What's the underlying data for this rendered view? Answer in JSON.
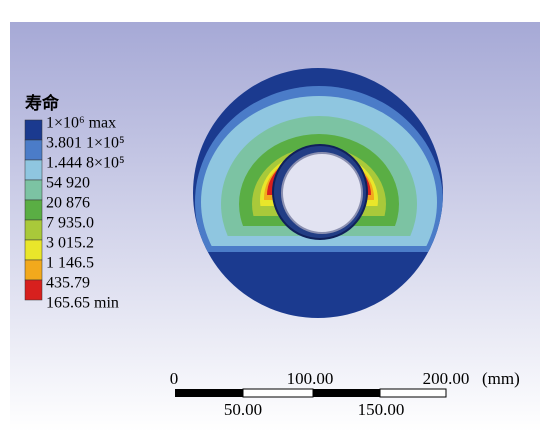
{
  "legend": {
    "title": "寿命",
    "items": [
      {
        "label": "1×10⁶ max",
        "color": "#1b3a8f"
      },
      {
        "label": "3.801 1×10⁵",
        "color": "#4b7cc8"
      },
      {
        "label": "1.444 8×10⁵",
        "color": "#8fc6e0"
      },
      {
        "label": "54 920",
        "color": "#7cc3a3"
      },
      {
        "label": "20 876",
        "color": "#5aae44"
      },
      {
        "label": "7 935.0",
        "color": "#a9c93a"
      },
      {
        "label": "3 015.2",
        "color": "#e9e62a"
      },
      {
        "label": "1 146.5",
        "color": "#f2a91c"
      },
      {
        "label": "435.79",
        "color": "#d7201e"
      }
    ],
    "min_label": "165.65 min"
  },
  "scale_bar": {
    "top_labels": [
      "0",
      "100.00",
      "200.00"
    ],
    "bottom_labels": [
      "50.00",
      "150.00"
    ],
    "unit": "(mm)"
  }
}
